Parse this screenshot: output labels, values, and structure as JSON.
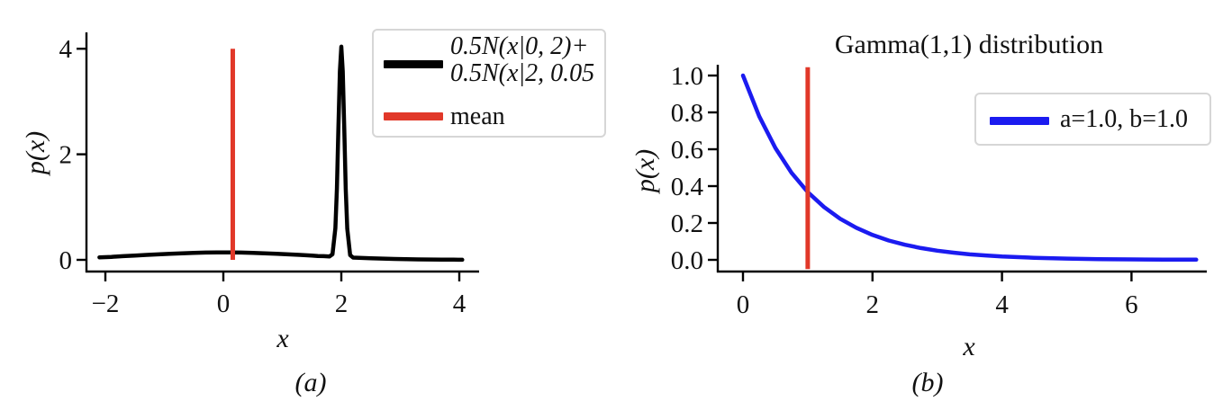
{
  "figure": {
    "background": "#ffffff",
    "text_color": "#111111"
  },
  "chart_data": [
    {
      "id": "a",
      "type": "line",
      "title": "",
      "xlabel": "x",
      "ylabel": "p(x)",
      "caption": "(a)",
      "xlim": [
        -2.3,
        4.35
      ],
      "ylim": [
        -0.17,
        4.3
      ],
      "grid": false,
      "xticks": {
        "values": [
          -2,
          0,
          2,
          4
        ],
        "labels": [
          "−2",
          "0",
          "2",
          "4"
        ]
      },
      "yticks": {
        "values": [
          0,
          2,
          4
        ],
        "labels": [
          "0",
          "2",
          "4"
        ]
      },
      "series": [
        {
          "name": "0.5N(x|0, 2)+0.5N(x|2, 0.05",
          "color": "#000000",
          "linewidth": 4.5,
          "points": [
            [
              -2.1,
              0.047
            ],
            [
              -1.9,
              0.057
            ],
            [
              -1.7,
              0.069
            ],
            [
              -1.5,
              0.081
            ],
            [
              -1.3,
              0.093
            ],
            [
              -1.1,
              0.104
            ],
            [
              -0.9,
              0.115
            ],
            [
              -0.7,
              0.125
            ],
            [
              -0.5,
              0.133
            ],
            [
              -0.3,
              0.138
            ],
            [
              -0.1,
              0.141
            ],
            [
              0.1,
              0.141
            ],
            [
              0.3,
              0.138
            ],
            [
              0.5,
              0.133
            ],
            [
              0.7,
              0.125
            ],
            [
              0.9,
              0.115
            ],
            [
              1.1,
              0.104
            ],
            [
              1.3,
              0.093
            ],
            [
              1.5,
              0.081
            ],
            [
              1.6,
              0.074
            ],
            [
              1.7,
              0.069
            ],
            [
              1.8,
              0.064
            ],
            [
              1.85,
              0.105
            ],
            [
              1.9,
              0.6
            ],
            [
              1.925,
              1.35
            ],
            [
              1.95,
              2.47
            ],
            [
              1.975,
              3.57
            ],
            [
              2.0,
              4.04
            ],
            [
              2.025,
              3.57
            ],
            [
              2.05,
              2.47
            ],
            [
              2.075,
              1.34
            ],
            [
              2.1,
              0.59
            ],
            [
              2.15,
              0.089
            ],
            [
              2.2,
              0.043
            ],
            [
              2.3,
              0.038
            ],
            [
              2.5,
              0.03
            ],
            [
              2.7,
              0.023
            ],
            [
              2.9,
              0.017
            ],
            [
              3.1,
              0.013
            ],
            [
              3.3,
              0.009
            ],
            [
              3.5,
              0.007
            ],
            [
              3.7,
              0.005
            ],
            [
              3.9,
              0.003
            ],
            [
              4.05,
              0.002
            ]
          ]
        }
      ],
      "vline": {
        "x": 0.16,
        "y_from": 0.0,
        "y_to": 4.0,
        "color": "#e13829",
        "linewidth": 5,
        "label": "mean"
      },
      "legend": {
        "position": "upper right",
        "entries": [
          {
            "color": "#000000",
            "label_lines": [
              "0.5N(x|0, 2)+",
              "0.5N(x|2, 0.05"
            ]
          },
          {
            "color": "#e13829",
            "label_lines": [
              "mean"
            ]
          }
        ]
      }
    },
    {
      "id": "b",
      "type": "line",
      "title": "Gamma(1,1) distribution",
      "xlabel": "x",
      "ylabel": "p(x)",
      "caption": "(b)",
      "xlim": [
        -0.35,
        7.2
      ],
      "ylim": [
        -0.06,
        1.06
      ],
      "grid": false,
      "xticks": {
        "values": [
          0,
          2,
          4,
          6
        ],
        "labels": [
          "0",
          "2",
          "4",
          "6"
        ]
      },
      "yticks": {
        "values": [
          0.0,
          0.2,
          0.4,
          0.6,
          0.8,
          1.0
        ],
        "labels": [
          "0.0",
          "0.2",
          "0.4",
          "0.6",
          "0.8",
          "1.0"
        ]
      },
      "series": [
        {
          "name": "a=1.0, b=1.0",
          "color": "#1b1bf0",
          "linewidth": 4.5,
          "points": [
            [
              0.0,
              1.0
            ],
            [
              0.25,
              0.779
            ],
            [
              0.5,
              0.607
            ],
            [
              0.75,
              0.472
            ],
            [
              1.0,
              0.368
            ],
            [
              1.25,
              0.287
            ],
            [
              1.5,
              0.223
            ],
            [
              1.75,
              0.174
            ],
            [
              2.0,
              0.135
            ],
            [
              2.25,
              0.105
            ],
            [
              2.5,
              0.082
            ],
            [
              2.75,
              0.064
            ],
            [
              3.0,
              0.05
            ],
            [
              3.25,
              0.039
            ],
            [
              3.5,
              0.03
            ],
            [
              3.75,
              0.024
            ],
            [
              4.0,
              0.018
            ],
            [
              4.5,
              0.011
            ],
            [
              5.0,
              0.007
            ],
            [
              5.5,
              0.004
            ],
            [
              6.0,
              0.0025
            ],
            [
              6.5,
              0.0015
            ],
            [
              7.0,
              0.0009
            ]
          ]
        }
      ],
      "vline": {
        "x": 1.0,
        "y_from": -0.05,
        "y_to": 1.045,
        "color": "#e13829",
        "linewidth": 5,
        "label": ""
      },
      "legend": {
        "position": "upper right",
        "entries": [
          {
            "color": "#1b1bf0",
            "label_lines": [
              "a=1.0, b=1.0"
            ]
          }
        ]
      }
    }
  ]
}
